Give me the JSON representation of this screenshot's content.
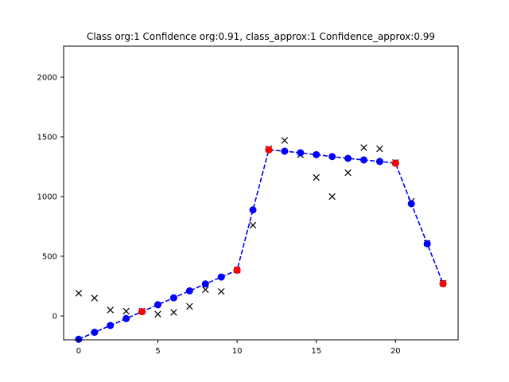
{
  "chart_data": {
    "type": "line",
    "title": "Class org:1  Confidence org:0.91, class_approx:1 Confidence_approx:0.99",
    "xlabel": "",
    "ylabel": "",
    "xlim": [
      -0.95,
      23.95
    ],
    "ylim": [
      -200,
      2260
    ],
    "xticks": [
      0,
      5,
      10,
      15,
      20
    ],
    "yticks": [
      0,
      500,
      1000,
      1500,
      2000
    ],
    "grid": false,
    "colors": {
      "original": "#000000",
      "approx": "#0000ff",
      "breakpoints": "#ff0000"
    },
    "series": [
      {
        "role": "original",
        "marker": "x",
        "x": [
          0,
          1,
          2,
          3,
          4,
          5,
          6,
          7,
          8,
          9,
          10,
          11,
          12,
          13,
          14,
          15,
          16,
          17,
          18,
          19,
          20,
          21,
          22,
          23
        ],
        "values": [
          190,
          150,
          50,
          40,
          40,
          15,
          30,
          80,
          220,
          205,
          385,
          760,
          1400,
          1470,
          1350,
          1160,
          1000,
          1200,
          1410,
          1400,
          1285,
          960,
          610,
          275
        ]
      },
      {
        "role": "approx",
        "marker": "o",
        "linestyle": "dashed",
        "x": [
          0,
          1,
          2,
          3,
          4,
          5,
          6,
          7,
          8,
          9,
          10,
          11,
          12,
          13,
          14,
          15,
          16,
          17,
          18,
          19,
          20,
          21,
          22,
          23
        ],
        "values": [
          -195,
          -137,
          -80,
          -22,
          36,
          94,
          152,
          210,
          268,
          326,
          384,
          888,
          1392,
          1380,
          1367,
          1351,
          1335,
          1320,
          1307,
          1294,
          1280,
          940,
          605,
          270
        ]
      },
      {
        "role": "breakpoints",
        "marker": "o",
        "x": [
          4,
          10,
          12,
          20,
          23
        ],
        "values": [
          36,
          384,
          1392,
          1280,
          270
        ]
      }
    ]
  }
}
